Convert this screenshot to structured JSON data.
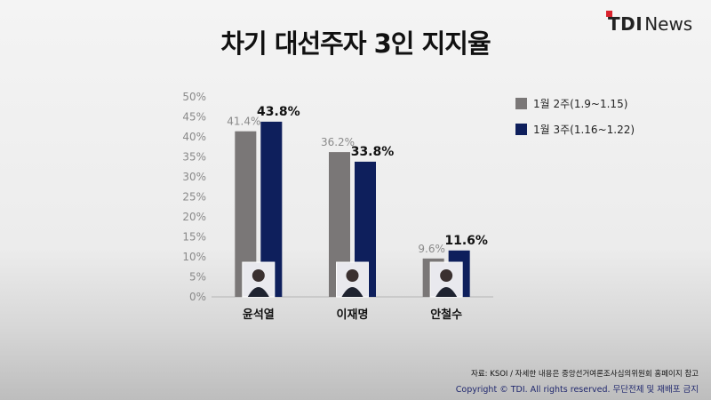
{
  "page": {
    "title": "차기 대선주자 3인 지지율",
    "logo": {
      "mark": "TDI",
      "suffix": "News",
      "accent_color": "#d9232d"
    },
    "source_note": "자료: KSOI / 자세한 내용은 중앙선거여론조사심의위원회 홈페이지 참고",
    "copyright": "Copyright © TDI. All rights reserved. 무단전제 및 재배포 금지"
  },
  "chart_data": {
    "type": "bar",
    "categories": [
      "윤석열",
      "이재명",
      "안철수"
    ],
    "series": [
      {
        "name": "1월 2주(1.9~1.15)",
        "values": [
          41.4,
          36.2,
          9.6
        ],
        "labels": [
          "41.4%",
          "36.2%",
          "9.6%"
        ],
        "color": "#7a7777",
        "label_color": "#8a8a8a"
      },
      {
        "name": "1월 3주(1.16~1.22)",
        "values": [
          43.8,
          33.8,
          11.6
        ],
        "labels": [
          "43.8%",
          "33.8%",
          "11.6%"
        ],
        "color": "#0e1f5c",
        "label_color": "#111111"
      }
    ],
    "yticks": [
      "0%",
      "5%",
      "10%",
      "15%",
      "20%",
      "25%",
      "30%",
      "35%",
      "40%",
      "45%",
      "50%"
    ],
    "ylim": [
      0,
      50
    ],
    "grid": false,
    "legend_position": "top-right",
    "candidate_photos": [
      "portrait-icon",
      "portrait-icon",
      "portrait-icon"
    ]
  }
}
